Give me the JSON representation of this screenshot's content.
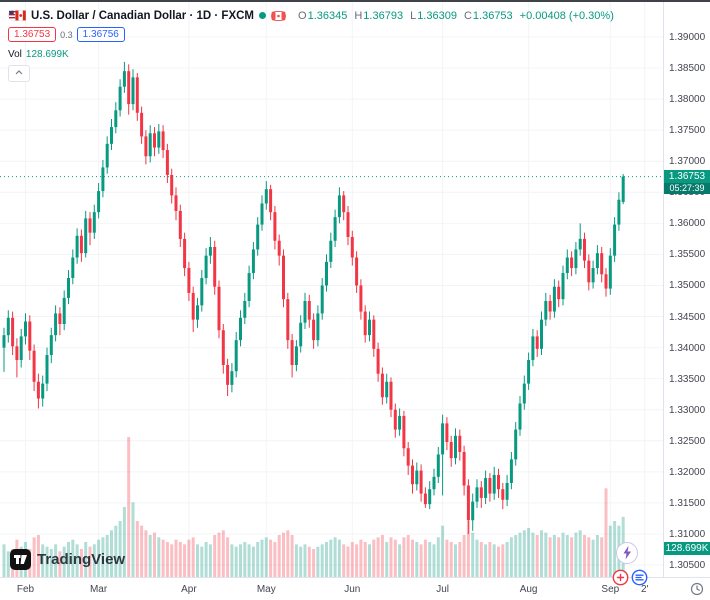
{
  "header": {
    "symbol_title": "U.S. Dollar / Canadian Dollar · 1D · FXCM",
    "ohlc": {
      "o_label": "O",
      "o": "1.36345",
      "h_label": "H",
      "h": "1.36793",
      "l_label": "L",
      "l": "1.36309",
      "c_label": "C",
      "c": "1.36753",
      "change": "+0.00408 (+0.30%)"
    },
    "bid": "1.36753",
    "spread": "0.3",
    "ask": "1.36756",
    "vol_label": "Vol",
    "vol_value": "128.699K"
  },
  "price_axis": {
    "last_price": "1.36753",
    "countdown": "05:27:39",
    "volume_label": "128.699K"
  },
  "logo": {
    "text": "TradingView"
  },
  "colors": {
    "up": "#089981",
    "down": "#f23645",
    "vol_up": "rgba(8,153,129,0.32)",
    "vol_down": "rgba(242,54,69,0.32)",
    "accent_blue": "#2962ff",
    "bolt_purple": "#7e57c2"
  },
  "chart_data": {
    "type": "candlestick",
    "title": "U.S. Dollar / Canadian Dollar",
    "symbol": "USDCAD",
    "interval": "1D",
    "exchange": "FXCM",
    "legend_last_bar": {
      "open": 1.36345,
      "high": 1.36793,
      "low": 1.36309,
      "close": 1.36753,
      "change": 0.00408,
      "change_pct": 0.3,
      "volume": "128.699K"
    },
    "y_axis": {
      "min": 1.3031,
      "max": 1.3956,
      "tick_step": 0.005
    },
    "y_ticks": [
      "1.39000",
      "1.38500",
      "1.38000",
      "1.37500",
      "1.37000",
      "1.36500",
      "1.36000",
      "1.35500",
      "1.35000",
      "1.34500",
      "1.34000",
      "1.33500",
      "1.33000",
      "1.32500",
      "1.32000",
      "1.31500",
      "1.31000",
      "1.30500"
    ],
    "x_ticks": [
      {
        "label": "Feb",
        "i": 5
      },
      {
        "label": "Mar",
        "i": 22
      },
      {
        "label": "Apr",
        "i": 43
      },
      {
        "label": "May",
        "i": 61
      },
      {
        "label": "Jun",
        "i": 81
      },
      {
        "label": "Jul",
        "i": 102
      },
      {
        "label": "Aug",
        "i": 122
      },
      {
        "label": "Sep",
        "i": 141
      },
      {
        "label": "2'",
        "i": 149
      }
    ],
    "ohlcv_format": [
      "open",
      "high",
      "low",
      "close",
      "volume_K"
    ],
    "ohlcv": [
      [
        1.34,
        1.3432,
        1.3361,
        1.342,
        70
      ],
      [
        1.342,
        1.346,
        1.3408,
        1.3448,
        55
      ],
      [
        1.3448,
        1.3458,
        1.3388,
        1.3402,
        60
      ],
      [
        1.3402,
        1.3415,
        1.3352,
        1.338,
        80
      ],
      [
        1.338,
        1.343,
        1.3368,
        1.3418,
        65
      ],
      [
        1.3418,
        1.3455,
        1.3405,
        1.3442,
        75
      ],
      [
        1.3442,
        1.3452,
        1.338,
        1.3395,
        60
      ],
      [
        1.3395,
        1.3405,
        1.333,
        1.3345,
        85
      ],
      [
        1.3345,
        1.3358,
        1.3302,
        1.3318,
        90
      ],
      [
        1.3318,
        1.3355,
        1.3305,
        1.3342,
        70
      ],
      [
        1.3342,
        1.34,
        1.333,
        1.3388,
        65
      ],
      [
        1.3388,
        1.3432,
        1.3375,
        1.342,
        60
      ],
      [
        1.342,
        1.3468,
        1.341,
        1.3455,
        70
      ],
      [
        1.3455,
        1.3465,
        1.342,
        1.3438,
        55
      ],
      [
        1.3438,
        1.3492,
        1.3428,
        1.348,
        65
      ],
      [
        1.348,
        1.3525,
        1.347,
        1.3512,
        75
      ],
      [
        1.3512,
        1.3558,
        1.3502,
        1.3545,
        80
      ],
      [
        1.3545,
        1.3592,
        1.3535,
        1.358,
        70
      ],
      [
        1.358,
        1.359,
        1.3538,
        1.3552,
        60
      ],
      [
        1.3552,
        1.362,
        1.3545,
        1.3608,
        75
      ],
      [
        1.3608,
        1.3618,
        1.3565,
        1.3585,
        65
      ],
      [
        1.3585,
        1.363,
        1.3575,
        1.3618,
        70
      ],
      [
        1.3618,
        1.3665,
        1.3608,
        1.3652,
        80
      ],
      [
        1.3652,
        1.3702,
        1.3642,
        1.369,
        85
      ],
      [
        1.369,
        1.374,
        1.368,
        1.3728,
        90
      ],
      [
        1.3728,
        1.3768,
        1.3718,
        1.3755,
        100
      ],
      [
        1.3755,
        1.3795,
        1.3745,
        1.3782,
        110
      ],
      [
        1.3782,
        1.3832,
        1.3772,
        1.382,
        120
      ],
      [
        1.382,
        1.386,
        1.381,
        1.3845,
        150
      ],
      [
        1.3845,
        1.3856,
        1.3775,
        1.3792,
        300
      ],
      [
        1.3792,
        1.3848,
        1.3782,
        1.3835,
        160
      ],
      [
        1.3835,
        1.3842,
        1.3765,
        1.3778,
        120
      ],
      [
        1.3778,
        1.3788,
        1.3728,
        1.374,
        110
      ],
      [
        1.374,
        1.375,
        1.3695,
        1.3708,
        100
      ],
      [
        1.3708,
        1.3758,
        1.3698,
        1.3745,
        90
      ],
      [
        1.3745,
        1.3755,
        1.3708,
        1.3722,
        95
      ],
      [
        1.3722,
        1.376,
        1.3712,
        1.3748,
        85
      ],
      [
        1.3748,
        1.3758,
        1.3705,
        1.3718,
        80
      ],
      [
        1.3718,
        1.3728,
        1.3665,
        1.3678,
        75
      ],
      [
        1.3678,
        1.3688,
        1.3632,
        1.3645,
        70
      ],
      [
        1.3645,
        1.3658,
        1.3605,
        1.362,
        80
      ],
      [
        1.362,
        1.363,
        1.3562,
        1.3575,
        75
      ],
      [
        1.3575,
        1.3585,
        1.3515,
        1.3528,
        70
      ],
      [
        1.3528,
        1.3538,
        1.3475,
        1.3488,
        80
      ],
      [
        1.3488,
        1.3498,
        1.3425,
        1.3445,
        85
      ],
      [
        1.3445,
        1.348,
        1.3432,
        1.3468,
        70
      ],
      [
        1.3468,
        1.3525,
        1.3458,
        1.3512,
        65
      ],
      [
        1.3512,
        1.356,
        1.3502,
        1.3548,
        75
      ],
      [
        1.3548,
        1.3578,
        1.3535,
        1.3562,
        70
      ],
      [
        1.3562,
        1.3572,
        1.3485,
        1.3498,
        90
      ],
      [
        1.3498,
        1.3508,
        1.3415,
        1.3428,
        95
      ],
      [
        1.3428,
        1.3438,
        1.3358,
        1.3372,
        100
      ],
      [
        1.3372,
        1.3382,
        1.3322,
        1.334,
        85
      ],
      [
        1.334,
        1.3375,
        1.3328,
        1.3362,
        70
      ],
      [
        1.3362,
        1.3425,
        1.3352,
        1.3412,
        65
      ],
      [
        1.3412,
        1.346,
        1.3402,
        1.3448,
        70
      ],
      [
        1.3448,
        1.3488,
        1.3438,
        1.3475,
        75
      ],
      [
        1.3475,
        1.3532,
        1.3465,
        1.352,
        70
      ],
      [
        1.352,
        1.357,
        1.351,
        1.3558,
        65
      ],
      [
        1.3558,
        1.361,
        1.3548,
        1.3598,
        75
      ],
      [
        1.3598,
        1.3645,
        1.3588,
        1.3632,
        80
      ],
      [
        1.3632,
        1.3668,
        1.3622,
        1.3655,
        85
      ],
      [
        1.3655,
        1.3662,
        1.3605,
        1.3618,
        80
      ],
      [
        1.3618,
        1.3628,
        1.3558,
        1.3572,
        75
      ],
      [
        1.3572,
        1.3582,
        1.3532,
        1.3548,
        90
      ],
      [
        1.3548,
        1.3558,
        1.3465,
        1.3478,
        95
      ],
      [
        1.3478,
        1.3488,
        1.3398,
        1.3412,
        100
      ],
      [
        1.3412,
        1.3422,
        1.3352,
        1.3372,
        90
      ],
      [
        1.3372,
        1.3412,
        1.3362,
        1.3402,
        70
      ],
      [
        1.3402,
        1.3452,
        1.3392,
        1.344,
        65
      ],
      [
        1.344,
        1.3488,
        1.343,
        1.3475,
        70
      ],
      [
        1.3475,
        1.3485,
        1.3432,
        1.3445,
        65
      ],
      [
        1.3445,
        1.3455,
        1.3398,
        1.3412,
        60
      ],
      [
        1.3412,
        1.3468,
        1.3402,
        1.3455,
        65
      ],
      [
        1.3455,
        1.3512,
        1.3445,
        1.35,
        70
      ],
      [
        1.35,
        1.355,
        1.349,
        1.3538,
        75
      ],
      [
        1.3538,
        1.3585,
        1.3528,
        1.3572,
        80
      ],
      [
        1.3572,
        1.3622,
        1.3562,
        1.361,
        85
      ],
      [
        1.361,
        1.3658,
        1.36,
        1.3645,
        80
      ],
      [
        1.3645,
        1.3652,
        1.3605,
        1.3618,
        70
      ],
      [
        1.3618,
        1.3628,
        1.3565,
        1.3578,
        65
      ],
      [
        1.3578,
        1.3588,
        1.3532,
        1.3545,
        75
      ],
      [
        1.3545,
        1.3555,
        1.3488,
        1.35,
        70
      ],
      [
        1.35,
        1.351,
        1.3445,
        1.3458,
        80
      ],
      [
        1.3458,
        1.3468,
        1.3408,
        1.342,
        75
      ],
      [
        1.342,
        1.3458,
        1.341,
        1.3445,
        70
      ],
      [
        1.3445,
        1.3452,
        1.3385,
        1.3398,
        80
      ],
      [
        1.3398,
        1.3408,
        1.3345,
        1.3358,
        85
      ],
      [
        1.3358,
        1.3368,
        1.3308,
        1.332,
        90
      ],
      [
        1.332,
        1.3358,
        1.331,
        1.3345,
        75
      ],
      [
        1.3345,
        1.3352,
        1.3288,
        1.33,
        85
      ],
      [
        1.33,
        1.331,
        1.3255,
        1.3268,
        80
      ],
      [
        1.3268,
        1.3302,
        1.3258,
        1.329,
        70
      ],
      [
        1.329,
        1.3298,
        1.3225,
        1.3238,
        85
      ],
      [
        1.3238,
        1.3248,
        1.3195,
        1.321,
        90
      ],
      [
        1.321,
        1.322,
        1.3165,
        1.318,
        80
      ],
      [
        1.318,
        1.3215,
        1.317,
        1.3202,
        75
      ],
      [
        1.3202,
        1.3212,
        1.3152,
        1.3165,
        70
      ],
      [
        1.3165,
        1.3175,
        1.3142,
        1.3148,
        80
      ],
      [
        1.3148,
        1.3185,
        1.314,
        1.3172,
        75
      ],
      [
        1.3172,
        1.3205,
        1.3162,
        1.3192,
        70
      ],
      [
        1.3192,
        1.324,
        1.3182,
        1.3228,
        85
      ],
      [
        1.3228,
        1.3292,
        1.3162,
        1.3278,
        110
      ],
      [
        1.3278,
        1.3288,
        1.3235,
        1.3248,
        80
      ],
      [
        1.3248,
        1.3258,
        1.3208,
        1.3222,
        75
      ],
      [
        1.3222,
        1.327,
        1.3212,
        1.3258,
        70
      ],
      [
        1.3258,
        1.3268,
        1.3218,
        1.3232,
        75
      ],
      [
        1.3232,
        1.3242,
        1.3162,
        1.3178,
        90
      ],
      [
        1.3178,
        1.3188,
        1.31,
        1.3122,
        120
      ],
      [
        1.3122,
        1.3165,
        1.3105,
        1.3152,
        95
      ],
      [
        1.3152,
        1.3188,
        1.3142,
        1.3175,
        80
      ],
      [
        1.3175,
        1.3185,
        1.3142,
        1.3158,
        75
      ],
      [
        1.3158,
        1.3202,
        1.3148,
        1.319,
        70
      ],
      [
        1.319,
        1.3198,
        1.3152,
        1.3165,
        75
      ],
      [
        1.3165,
        1.3208,
        1.3155,
        1.3195,
        70
      ],
      [
        1.3195,
        1.3205,
        1.3158,
        1.3172,
        65
      ],
      [
        1.3172,
        1.3182,
        1.314,
        1.3155,
        70
      ],
      [
        1.3155,
        1.3195,
        1.3145,
        1.3182,
        75
      ],
      [
        1.3182,
        1.3232,
        1.3172,
        1.322,
        85
      ],
      [
        1.322,
        1.328,
        1.321,
        1.3268,
        90
      ],
      [
        1.3268,
        1.3322,
        1.3258,
        1.331,
        95
      ],
      [
        1.331,
        1.3355,
        1.33,
        1.3342,
        100
      ],
      [
        1.3342,
        1.3392,
        1.3332,
        1.338,
        105
      ],
      [
        1.338,
        1.343,
        1.337,
        1.3418,
        95
      ],
      [
        1.3418,
        1.3428,
        1.3385,
        1.3398,
        90
      ],
      [
        1.3398,
        1.3458,
        1.3388,
        1.3445,
        100
      ],
      [
        1.3445,
        1.3488,
        1.3435,
        1.3475,
        95
      ],
      [
        1.3475,
        1.3485,
        1.3445,
        1.3458,
        85
      ],
      [
        1.3458,
        1.351,
        1.3448,
        1.3498,
        90
      ],
      [
        1.3498,
        1.3508,
        1.3465,
        1.3478,
        85
      ],
      [
        1.3478,
        1.3532,
        1.3468,
        1.352,
        95
      ],
      [
        1.352,
        1.3558,
        1.351,
        1.3545,
        90
      ],
      [
        1.3545,
        1.3555,
        1.3515,
        1.3528,
        85
      ],
      [
        1.3528,
        1.357,
        1.3518,
        1.3558,
        95
      ],
      [
        1.3558,
        1.36,
        1.3548,
        1.3575,
        100
      ],
      [
        1.3575,
        1.3585,
        1.3528,
        1.354,
        90
      ],
      [
        1.354,
        1.355,
        1.3492,
        1.3505,
        85
      ],
      [
        1.3505,
        1.354,
        1.3495,
        1.3528,
        80
      ],
      [
        1.3528,
        1.3565,
        1.3518,
        1.3552,
        90
      ],
      [
        1.3552,
        1.3562,
        1.3505,
        1.3518,
        85
      ],
      [
        1.3518,
        1.3528,
        1.3482,
        1.3495,
        190
      ],
      [
        1.3495,
        1.356,
        1.3485,
        1.3548,
        110
      ],
      [
        1.3548,
        1.361,
        1.3538,
        1.3598,
        120
      ],
      [
        1.3598,
        1.365,
        1.3588,
        1.3638,
        110
      ],
      [
        1.36345,
        1.36793,
        1.36309,
        1.36753,
        128.699
      ]
    ]
  }
}
